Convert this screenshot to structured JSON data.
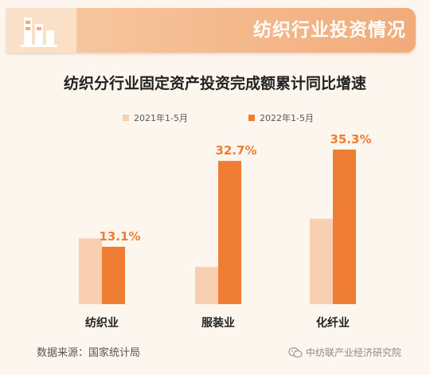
{
  "header": {
    "title": "纺织行业投资情况",
    "icon": "bar-chart-icon"
  },
  "colors": {
    "series_2021": "#f8cfb0",
    "series_2022": "#ef7d34",
    "value_label": "#ef7d34"
  },
  "chart_data": {
    "type": "bar",
    "title": "纺织分行业固定资产投资完成额累计同比增速",
    "categories": [
      "纺织业",
      "服装业",
      "化纤业"
    ],
    "series": [
      {
        "name": "2021年1-5月",
        "values": [
          15.0,
          8.5,
          19.5
        ]
      },
      {
        "name": "2022年1-5月",
        "values": [
          13.1,
          32.7,
          35.3
        ]
      }
    ],
    "data_labels": [
      "13.1%",
      "32.7%",
      "35.3%"
    ],
    "ylim": [
      0,
      40
    ],
    "xlabel": "",
    "ylabel": "",
    "grid": false,
    "legend_position": "top"
  },
  "source_text": "数据来源：国家统计局",
  "watermark": {
    "icon": "wechat-icon",
    "text": "中纺联产业经济研究院"
  }
}
